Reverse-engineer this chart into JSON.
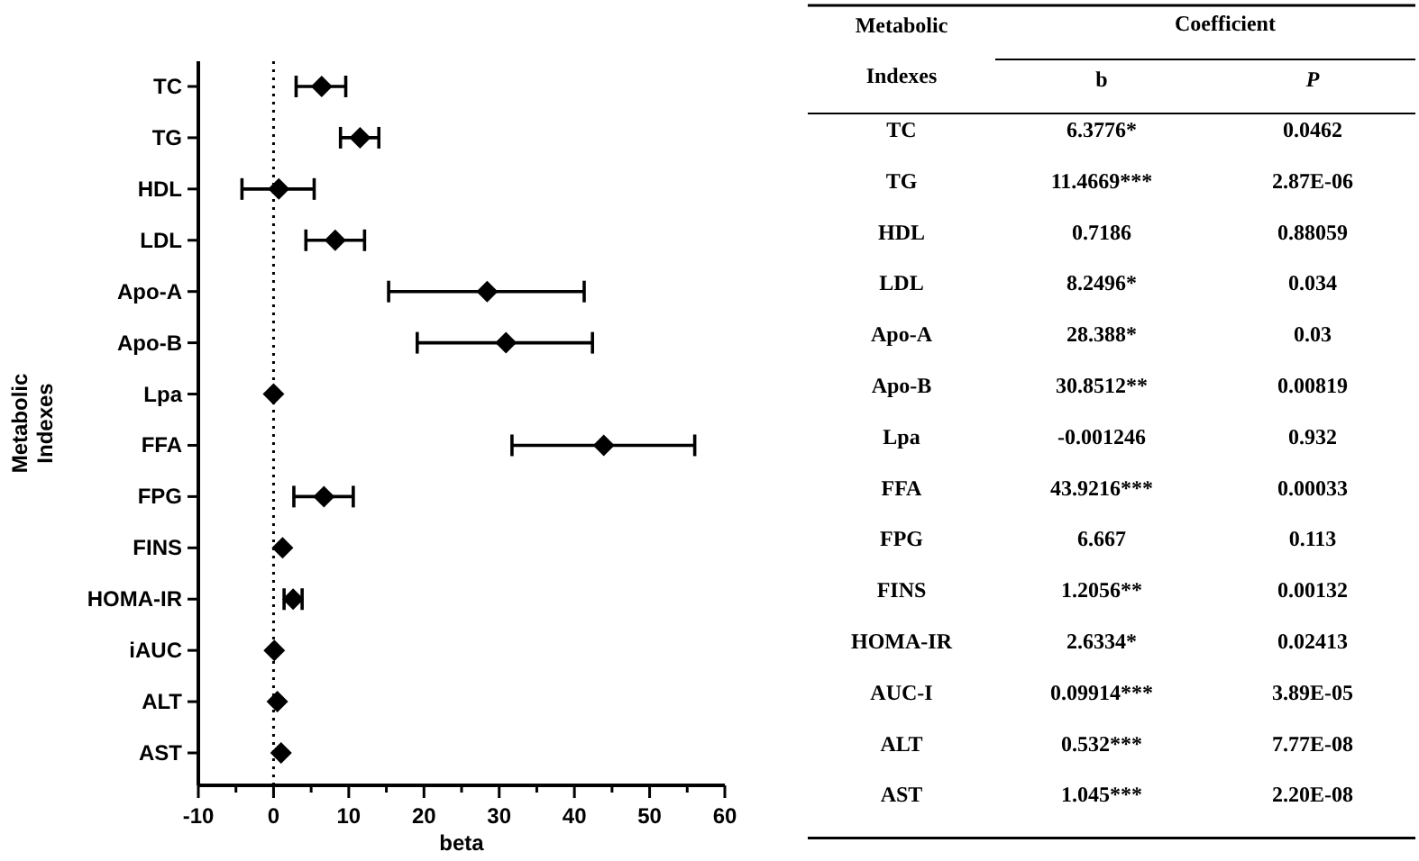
{
  "chart_data": [
    {
      "type": "scatter",
      "orientation": "horizontal",
      "xlabel": "beta",
      "ylabel": "Metabolic Indexes",
      "marker": "diamond",
      "categories": [
        "TC",
        "TG",
        "HDL",
        "LDL",
        "Apo-A",
        "Apo-B",
        "Lpa",
        "FFA",
        "FPG",
        "FINS",
        "HOMA-IR",
        "iAUC",
        "ALT",
        "AST"
      ],
      "series": [
        {
          "color": "#000000",
          "values": [
            6.4,
            11.5,
            0.7,
            8.2,
            28.4,
            30.9,
            0,
            43.9,
            6.7,
            1.2,
            2.6,
            0.1,
            0.5,
            1
          ],
          "errors": [
            [
              3.0,
              9.6
            ],
            [
              8.9,
              14.0
            ],
            [
              -4.2,
              5.4
            ],
            [
              4.3,
              12.1
            ],
            [
              15.3,
              41.3
            ],
            [
              19.1,
              42.4
            ],
            null,
            [
              31.7,
              56.0
            ],
            [
              2.7,
              10.6
            ],
            null,
            [
              1.4,
              3.8
            ],
            null,
            null,
            null
          ]
        }
      ],
      "xlim": [
        -10,
        60
      ],
      "xticks": [
        -10,
        {
          "value": -5,
          "label": null
        },
        0,
        {
          "value": 5,
          "label": null
        },
        10,
        {
          "value": 15,
          "label": null
        },
        20,
        {
          "value": 25,
          "label": null
        },
        30,
        {
          "value": 35,
          "label": null
        },
        40,
        {
          "value": 45,
          "label": null
        },
        50,
        {
          "value": 55,
          "label": null
        },
        60
      ],
      "ref_lines": [
        {
          "axis": "x",
          "value": 0,
          "line_style": "dotted",
          "color": "#000000"
        }
      ]
    },
    {
      "type": "other",
      "ylabel": "Metabolic Indexes",
      "xlabel": "Coefficient",
      "categories": [
        "b",
        "P"
      ],
      "y_categories": [
        "TC",
        "TG",
        "HDL",
        "LDL",
        "Apo-A",
        "Apo-B",
        "Lpa",
        "FFA",
        "FPG",
        "FINS",
        "HOMA-IR",
        "AUC-I",
        "ALT",
        "AST"
      ],
      "cell_labels": [
        [
          "6.3776*",
          "0.0462"
        ],
        [
          "11.4669***",
          "2.87E-06"
        ],
        [
          "0.7186",
          "0.88059"
        ],
        [
          "8.2496*",
          "0.034"
        ],
        [
          "28.388*",
          "0.03"
        ],
        [
          "30.8512**",
          "0.00819"
        ],
        [
          "-0.001246",
          "0.932"
        ],
        [
          "43.9216***",
          "0.00033"
        ],
        [
          "6.667",
          "0.113"
        ],
        [
          "1.2056**",
          "0.00132"
        ],
        [
          "2.6334*",
          "0.02413"
        ],
        [
          "0.09914***",
          "3.89E-05"
        ],
        [
          "0.532***",
          "7.77E-08"
        ],
        [
          "1.045***",
          "2.20E-08"
        ]
      ]
    }
  ]
}
